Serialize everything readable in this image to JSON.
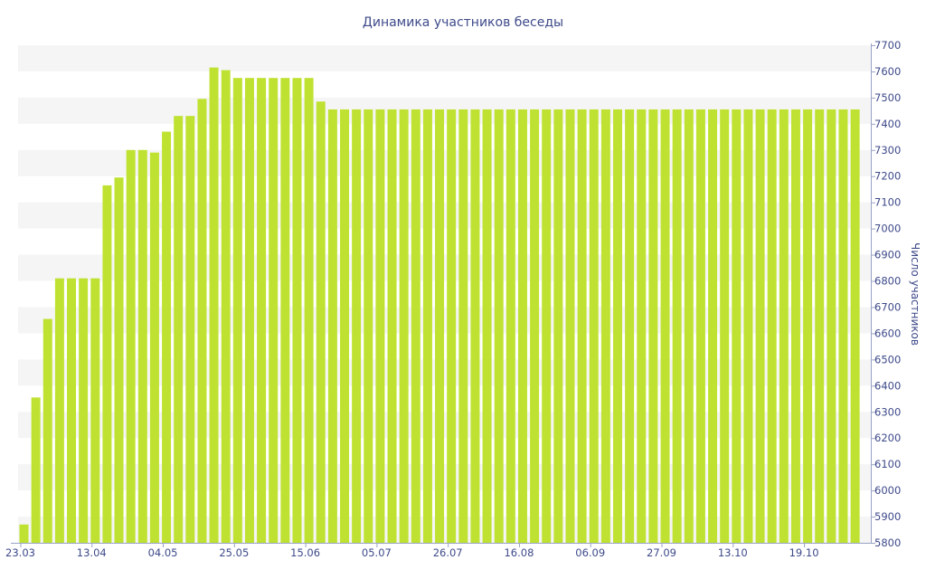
{
  "chart_data": {
    "type": "bar",
    "title": "Динамика участников беседы",
    "xlabel": "",
    "ylabel": "Число участников",
    "ylim": [
      5800,
      7700
    ],
    "y_ticks": [
      5800,
      5900,
      6000,
      6100,
      6200,
      6300,
      6400,
      6500,
      6600,
      6700,
      6800,
      6900,
      7000,
      7100,
      7200,
      7300,
      7400,
      7500,
      7600,
      7700
    ],
    "y_axis_position": "right",
    "grid": "alternating horizontal bands",
    "legend": "none",
    "bar_color": "#bfe232",
    "x_tick_labels": [
      {
        "label": "23.03",
        "index": 0
      },
      {
        "label": "13.04",
        "index": 6
      },
      {
        "label": "04.05",
        "index": 12
      },
      {
        "label": "25.05",
        "index": 18
      },
      {
        "label": "15.06",
        "index": 24
      },
      {
        "label": "05.07",
        "index": 30
      },
      {
        "label": "26.07",
        "index": 36
      },
      {
        "label": "16.08",
        "index": 42
      },
      {
        "label": "06.09",
        "index": 48
      },
      {
        "label": "27.09",
        "index": 54
      },
      {
        "label": "13.10",
        "index": 60
      },
      {
        "label": "19.10",
        "index": 66
      }
    ],
    "values": [
      5870,
      6355,
      6655,
      6810,
      6810,
      6810,
      6810,
      7165,
      7195,
      7300,
      7300,
      7290,
      7370,
      7430,
      7430,
      7495,
      7615,
      7605,
      7575,
      7575,
      7575,
      7575,
      7575,
      7575,
      7575,
      7485,
      7455,
      7455,
      7455,
      7455,
      7455,
      7455,
      7455,
      7455,
      7455,
      7455,
      7455,
      7455,
      7455,
      7455,
      7455,
      7455,
      7455,
      7455,
      7455,
      7455,
      7455,
      7455,
      7455,
      7455,
      7455,
      7455,
      7455,
      7455,
      7455,
      7455,
      7455,
      7455,
      7455,
      7455,
      7455,
      7455,
      7455,
      7455,
      7455,
      7455,
      7455,
      7455,
      7455,
      7455,
      7455
    ]
  }
}
